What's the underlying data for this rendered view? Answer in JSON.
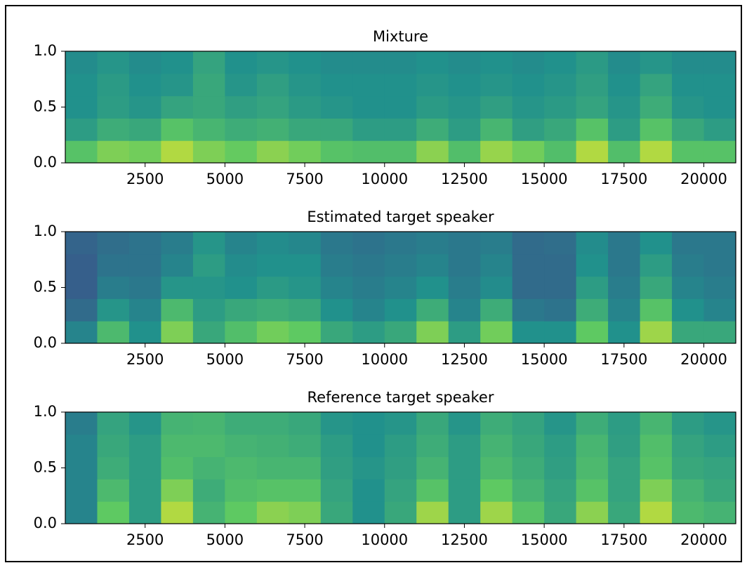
{
  "chart_data": [
    {
      "type": "spectrogram",
      "title": "Mixture",
      "xlim": [
        0,
        21000
      ],
      "ylim": [
        0,
        1
      ],
      "xticks": [
        2500,
        5000,
        7500,
        10000,
        12500,
        15000,
        17500,
        20000
      ],
      "yticks": [
        {
          "value": 0,
          "label": "0.0"
        },
        0.5,
        {
          "value": 1,
          "label": "1.0"
        }
      ],
      "z": [
        [
          0.72,
          0.8,
          0.78,
          0.88,
          0.8,
          0.76,
          0.82,
          0.78,
          0.72,
          0.7,
          0.7,
          0.82,
          0.7,
          0.84,
          0.78,
          0.7,
          0.88,
          0.7,
          0.88,
          0.72,
          0.72
        ],
        [
          0.55,
          0.62,
          0.6,
          0.72,
          0.66,
          0.62,
          0.64,
          0.6,
          0.6,
          0.55,
          0.55,
          0.62,
          0.55,
          0.66,
          0.56,
          0.6,
          0.72,
          0.55,
          0.72,
          0.6,
          0.55
        ],
        [
          0.5,
          0.55,
          0.52,
          0.58,
          0.6,
          0.56,
          0.58,
          0.54,
          0.52,
          0.5,
          0.5,
          0.54,
          0.52,
          0.56,
          0.52,
          0.54,
          0.58,
          0.52,
          0.62,
          0.52,
          0.5
        ],
        [
          0.5,
          0.54,
          0.5,
          0.52,
          0.6,
          0.52,
          0.56,
          0.52,
          0.5,
          0.5,
          0.5,
          0.52,
          0.5,
          0.52,
          0.5,
          0.52,
          0.56,
          0.5,
          0.58,
          0.5,
          0.5
        ],
        [
          0.48,
          0.52,
          0.48,
          0.5,
          0.58,
          0.5,
          0.52,
          0.5,
          0.48,
          0.48,
          0.48,
          0.5,
          0.48,
          0.5,
          0.48,
          0.5,
          0.54,
          0.48,
          0.52,
          0.48,
          0.48
        ]
      ]
    },
    {
      "type": "spectrogram",
      "title": "Estimated target speaker",
      "xlim": [
        0,
        21000
      ],
      "ylim": [
        0,
        1
      ],
      "xticks": [
        2500,
        5000,
        7500,
        10000,
        12500,
        15000,
        17500,
        20000
      ],
      "yticks": [
        {
          "value": 0,
          "label": "0.0"
        },
        0.5,
        {
          "value": 1,
          "label": "1.0"
        }
      ],
      "z": [
        [
          0.45,
          0.68,
          0.5,
          0.8,
          0.6,
          0.7,
          0.78,
          0.75,
          0.6,
          0.55,
          0.6,
          0.8,
          0.55,
          0.78,
          0.5,
          0.5,
          0.75,
          0.5,
          0.85,
          0.6,
          0.6
        ],
        [
          0.35,
          0.52,
          0.45,
          0.68,
          0.55,
          0.6,
          0.62,
          0.6,
          0.5,
          0.45,
          0.5,
          0.62,
          0.45,
          0.62,
          0.4,
          0.38,
          0.62,
          0.45,
          0.72,
          0.5,
          0.45
        ],
        [
          0.3,
          0.42,
          0.4,
          0.52,
          0.52,
          0.5,
          0.54,
          0.52,
          0.45,
          0.42,
          0.45,
          0.5,
          0.42,
          0.48,
          0.35,
          0.35,
          0.55,
          0.42,
          0.6,
          0.45,
          0.42
        ],
        [
          0.3,
          0.38,
          0.38,
          0.45,
          0.55,
          0.48,
          0.5,
          0.5,
          0.42,
          0.4,
          0.42,
          0.45,
          0.4,
          0.45,
          0.35,
          0.35,
          0.5,
          0.4,
          0.55,
          0.42,
          0.4
        ],
        [
          0.32,
          0.36,
          0.38,
          0.42,
          0.52,
          0.45,
          0.48,
          0.46,
          0.4,
          0.38,
          0.4,
          0.42,
          0.4,
          0.42,
          0.35,
          0.36,
          0.48,
          0.4,
          0.5,
          0.4,
          0.4
        ]
      ]
    },
    {
      "type": "spectrogram",
      "title": "Reference target speaker",
      "xlim": [
        0,
        21000
      ],
      "ylim": [
        0,
        1
      ],
      "xticks": [
        2500,
        5000,
        7500,
        10000,
        12500,
        15000,
        17500,
        20000
      ],
      "yticks": [
        {
          "value": 0,
          "label": "0.0"
        },
        0.5,
        {
          "value": 1,
          "label": "1.0"
        }
      ],
      "z": [
        [
          0.45,
          0.75,
          0.55,
          0.88,
          0.65,
          0.75,
          0.82,
          0.8,
          0.6,
          0.5,
          0.6,
          0.85,
          0.55,
          0.85,
          0.72,
          0.6,
          0.82,
          0.6,
          0.88,
          0.68,
          0.65
        ],
        [
          0.45,
          0.68,
          0.55,
          0.8,
          0.62,
          0.7,
          0.72,
          0.72,
          0.58,
          0.5,
          0.58,
          0.72,
          0.55,
          0.75,
          0.65,
          0.58,
          0.72,
          0.58,
          0.8,
          0.65,
          0.6
        ],
        [
          0.45,
          0.62,
          0.55,
          0.7,
          0.65,
          0.68,
          0.66,
          0.66,
          0.56,
          0.52,
          0.56,
          0.65,
          0.55,
          0.68,
          0.62,
          0.56,
          0.68,
          0.58,
          0.72,
          0.6,
          0.58
        ],
        [
          0.45,
          0.6,
          0.55,
          0.68,
          0.68,
          0.65,
          0.64,
          0.62,
          0.55,
          0.5,
          0.55,
          0.62,
          0.55,
          0.65,
          0.6,
          0.55,
          0.66,
          0.56,
          0.7,
          0.58,
          0.55
        ],
        [
          0.42,
          0.58,
          0.52,
          0.65,
          0.66,
          0.62,
          0.62,
          0.6,
          0.52,
          0.5,
          0.52,
          0.6,
          0.52,
          0.62,
          0.58,
          0.52,
          0.62,
          0.55,
          0.66,
          0.55,
          0.52
        ]
      ]
    }
  ]
}
